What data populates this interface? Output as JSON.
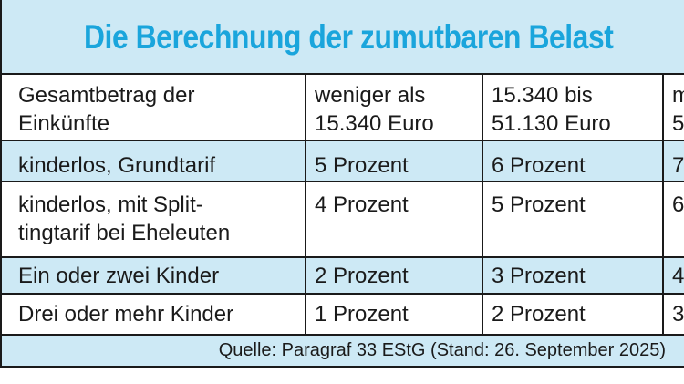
{
  "title": "Die Berechnung der zumutbaren Belast",
  "table": {
    "rows": [
      {
        "cells": [
          "Gesamtbetrag der\nEinkünfte",
          "weniger als\n15.340 Euro",
          "15.340 bis\n51.130 Euro",
          "m\n5"
        ]
      },
      {
        "cells": [
          "kinderlos, Grundtarif",
          "5 Prozent",
          "6 Prozent",
          "7"
        ]
      },
      {
        "cells": [
          "kinderlos, mit Split-\ntingtarif bei Eheleuten",
          "4 Prozent",
          "5 Prozent",
          "6"
        ]
      },
      {
        "cells": [
          "Ein oder zwei Kinder",
          "2 Prozent",
          "3 Prozent",
          "4"
        ]
      },
      {
        "cells": [
          "Drei oder mehr Kinder",
          "1 Prozent",
          "2 Prozent",
          "3"
        ]
      }
    ]
  },
  "source": "Quelle: Paragraf 33 EStG (Stand: 26. September 2025)",
  "colors": {
    "title": "#1aa5dc",
    "band": "#cde9f5",
    "rule": "#1a1a1a"
  }
}
